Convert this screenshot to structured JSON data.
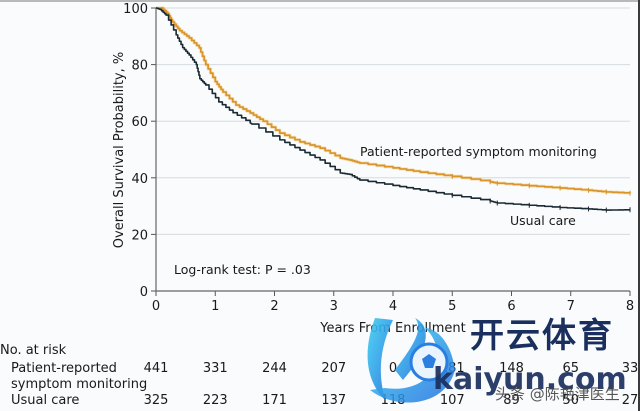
{
  "chart_data": {
    "type": "line",
    "subtype": "kaplan-meier",
    "title": "",
    "xlabel": "Years From Enrollment",
    "ylabel": "Overall Survival Probability, %",
    "xlim": [
      0,
      8
    ],
    "ylim": [
      0,
      100
    ],
    "x_ticks": [
      "0",
      "1",
      "2",
      "3",
      "4",
      "5",
      "6",
      "7",
      "8"
    ],
    "y_ticks": [
      "0",
      "20",
      "40",
      "60",
      "80",
      "100"
    ],
    "grid": "horizontal",
    "annotation": "Log-rank test: P = .03",
    "series": [
      {
        "name": "Patient-reported symptom monitoring",
        "color": "#d9952a",
        "points": [
          [
            0,
            100
          ],
          [
            0.1,
            100
          ],
          [
            0.2,
            98
          ],
          [
            0.28,
            95
          ],
          [
            0.4,
            92
          ],
          [
            0.56,
            89.4
          ],
          [
            0.73,
            85.9
          ],
          [
            0.84,
            80
          ],
          [
            1.0,
            74
          ],
          [
            1.13,
            70.3
          ],
          [
            1.35,
            65.7
          ],
          [
            1.59,
            62.9
          ],
          [
            1.81,
            60
          ],
          [
            2.09,
            55.8
          ],
          [
            2.43,
            52.7
          ],
          [
            2.77,
            50.5
          ],
          [
            3.11,
            47
          ],
          [
            3.27,
            46.3
          ],
          [
            3.44,
            45.2
          ],
          [
            4.0,
            43.5
          ],
          [
            4.46,
            42
          ],
          [
            5.0,
            40.5
          ],
          [
            5.64,
            38.6
          ],
          [
            5.76,
            38.1
          ],
          [
            6.3,
            37.2
          ],
          [
            6.82,
            36.4
          ],
          [
            7.3,
            35.6
          ],
          [
            7.6,
            35
          ],
          [
            8.0,
            34.6
          ]
        ],
        "label_text": "Patient-reported symptom monitoring"
      },
      {
        "name": "Usual care",
        "color": "#1a2a33",
        "points": [
          [
            0,
            100
          ],
          [
            0.07,
            99.5
          ],
          [
            0.17,
            97.5
          ],
          [
            0.34,
            90.5
          ],
          [
            0.45,
            86
          ],
          [
            0.56,
            83.4
          ],
          [
            0.68,
            80
          ],
          [
            0.74,
            75
          ],
          [
            0.84,
            72.8
          ],
          [
            1.06,
            66.8
          ],
          [
            1.3,
            63
          ],
          [
            1.59,
            59.4
          ],
          [
            1.62,
            59
          ],
          [
            2.09,
            53.4
          ],
          [
            2.43,
            49.8
          ],
          [
            2.77,
            46.3
          ],
          [
            3.11,
            41.7
          ],
          [
            3.27,
            41.2
          ],
          [
            3.44,
            39.2
          ],
          [
            4.0,
            37.3
          ],
          [
            4.46,
            35.7
          ],
          [
            5.0,
            33.8
          ],
          [
            5.64,
            31.8
          ],
          [
            5.76,
            31.1
          ],
          [
            6.3,
            30.3
          ],
          [
            6.82,
            29.5
          ],
          [
            7.3,
            29
          ],
          [
            7.6,
            28.6
          ],
          [
            8.0,
            28.7
          ]
        ],
        "label_text": "Usual care"
      }
    ],
    "number_at_risk": {
      "header": "No. at risk",
      "time_points": [
        0,
        1,
        2,
        3,
        4,
        5,
        6,
        7,
        8
      ],
      "rows": [
        {
          "label_lines": [
            "Patient-reported",
            "symptom monitoring"
          ],
          "values": [
            "441",
            "331",
            "244",
            "207",
            "0",
            "181",
            "148",
            "65",
            "33"
          ],
          "note": "value at year 4 partially obscured by watermark; only trailing '0' visible"
        },
        {
          "label_lines": [
            "Usual care"
          ],
          "values": [
            "325",
            "223",
            "171",
            "137",
            "118",
            "107",
            "89",
            "50",
            "27"
          ]
        }
      ]
    }
  },
  "watermark": {
    "brand_cn": "开云体育",
    "url": "kaiyun.com",
    "credit": "头条 @陈艳津医生"
  }
}
